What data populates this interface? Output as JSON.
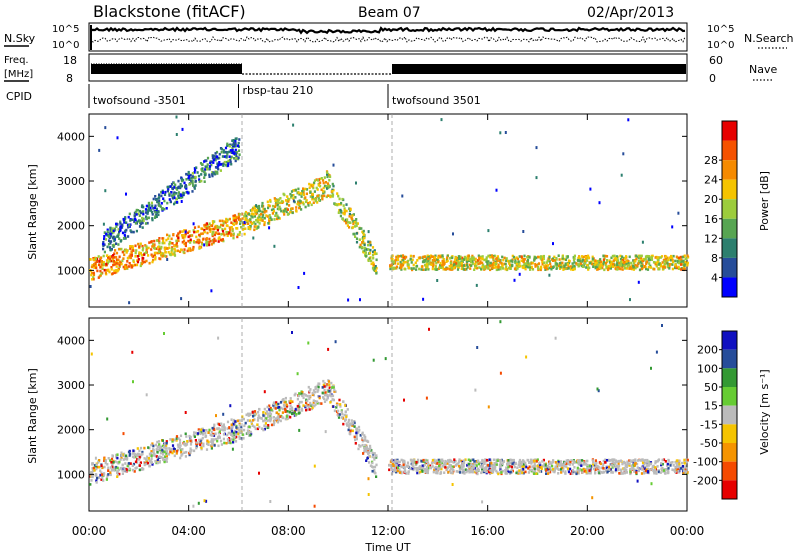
{
  "header": {
    "station": "Blackstone (fitACF)",
    "beam": "Beam 07",
    "date": "02/Apr/2013"
  },
  "top_panels": {
    "nsky_label": "N.Sky",
    "nsky_ticks": [
      "10^5",
      "10^0"
    ],
    "nsearch_label": "N.Search",
    "nsearch_ticks": [
      "10^5",
      "10^0"
    ],
    "freq_label": "Freq.",
    "freq_unit": "[MHz]",
    "freq_ticks": [
      "18",
      "8"
    ],
    "nave_label": "Nave",
    "nave_ticks": [
      "60",
      "0"
    ],
    "cpid_label": "CPID",
    "cpid_segments": [
      {
        "label": "twofsound -3501",
        "start_hour": 0,
        "end_hour": 6
      },
      {
        "label": "rbsp-tau 210",
        "start_hour": 6,
        "end_hour": 12
      },
      {
        "label": "twofsound 3501",
        "start_hour": 12,
        "end_hour": 24
      }
    ]
  },
  "colors": {
    "power_scale": [
      "#0000ff",
      "#264d9a",
      "#2c7f6e",
      "#57a552",
      "#9ccc3c",
      "#f5c400",
      "#f58a00",
      "#f55200",
      "#e60000"
    ],
    "velocity_scale": [
      "#e60000",
      "#f54a00",
      "#f59400",
      "#f5c400",
      "#bbbbbb",
      "#66cc33",
      "#339933",
      "#264d9a",
      "#1010c0"
    ],
    "ground_scatter": "#bbbbbb"
  },
  "chart_data": [
    {
      "type": "heatmap",
      "panel": "power",
      "xlabel": "Time UT",
      "ylabel": "Slant Range [km]",
      "x_range_hours": [
        0,
        24
      ],
      "x_ticks": [
        "00:00",
        "04:00",
        "08:00",
        "12:00",
        "16:00",
        "20:00",
        "00:00"
      ],
      "y_range_km": [
        180,
        4500
      ],
      "y_ticks": [
        1000,
        2000,
        3000,
        4000
      ],
      "colorbar": {
        "label": "Power [dB]",
        "ticks": [
          "4",
          "8",
          "12",
          "16",
          "20",
          "24",
          "28"
        ]
      },
      "echo_bands": [
        {
          "t_start": 0,
          "t_end": 6,
          "r_start": 1050,
          "r_end": 2050,
          "power_db": 22
        },
        {
          "t_start": 0.5,
          "t_end": 6,
          "r_start": 1600,
          "r_end": 3800,
          "power_db": 8
        },
        {
          "t_start": 6,
          "t_end": 9.5,
          "r_start": 2050,
          "r_end": 2900,
          "power_db": 18
        },
        {
          "t_start": 9.5,
          "t_end": 11.5,
          "r_start": 3000,
          "r_end": 1200,
          "power_db": 16
        },
        {
          "t_start": 12,
          "t_end": 24,
          "r_start": 1200,
          "r_end": 1200,
          "power_db": 18
        }
      ]
    },
    {
      "type": "heatmap",
      "panel": "velocity",
      "xlabel": "Time UT",
      "ylabel": "Slant Range [km]",
      "x_range_hours": [
        0,
        24
      ],
      "x_ticks": [
        "00:00",
        "04:00",
        "08:00",
        "12:00",
        "16:00",
        "20:00",
        "00:00"
      ],
      "y_range_km": [
        180,
        4500
      ],
      "y_ticks": [
        1000,
        2000,
        3000,
        4000
      ],
      "colorbar": {
        "label": "Velocity [m s⁻¹]",
        "ticks": [
          "200",
          "100",
          "50",
          "15",
          "-15",
          "-50",
          "-100",
          "-200"
        ]
      },
      "echo_bands": [
        {
          "t_start": 0,
          "t_end": 6,
          "r_start": 1050,
          "r_end": 2050,
          "velocity": 0
        },
        {
          "t_start": 6,
          "t_end": 9.5,
          "r_start": 2050,
          "r_end": 2900,
          "velocity": 0
        },
        {
          "t_start": 9.5,
          "t_end": 11.5,
          "r_start": 3000,
          "r_end": 1200,
          "velocity": 40
        },
        {
          "t_start": 12,
          "t_end": 24,
          "r_start": 1200,
          "r_end": 1200,
          "velocity": 0
        }
      ]
    }
  ]
}
